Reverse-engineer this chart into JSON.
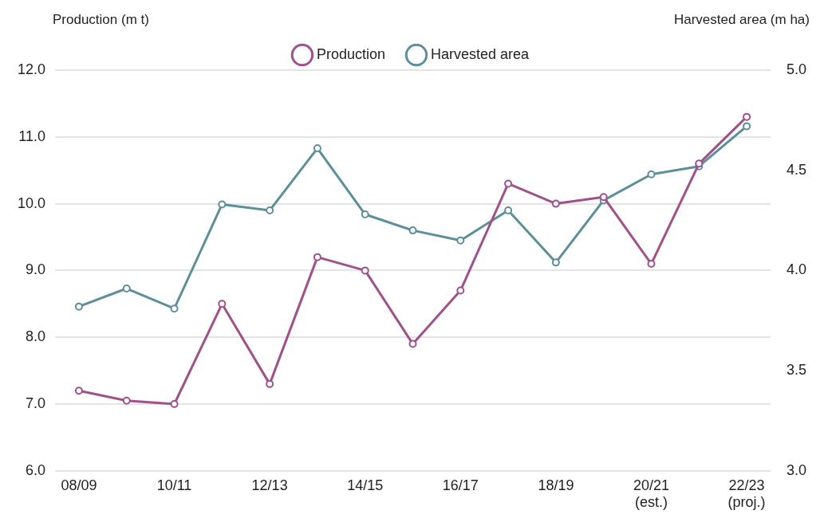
{
  "chart_data": {
    "type": "line",
    "ylabel": "Production (m t)",
    "y2label": "Harvested area (m ha)",
    "categories": [
      "08/09",
      null,
      "10/11",
      null,
      "12/13",
      null,
      "14/15",
      null,
      "16/17",
      null,
      "18/19",
      null,
      "20/21 (est.)",
      null,
      "22/23 (proj.)"
    ],
    "series": [
      {
        "name": "Production",
        "color": "#a0508a",
        "values": [
          7.2,
          7.05,
          7.0,
          8.5,
          7.3,
          9.2,
          9.0,
          7.9,
          8.7,
          10.3,
          10.0,
          10.1,
          9.1,
          10.6,
          11.3
        ]
      },
      {
        "name": "Harvested area",
        "color": "#5b8f9b",
        "axis": "y2",
        "values": [
          3.82,
          3.91,
          3.81,
          4.33,
          4.3,
          4.61,
          4.28,
          4.2,
          4.15,
          4.3,
          4.04,
          4.35,
          4.48,
          4.52,
          4.72
        ]
      }
    ],
    "ylim": [
      6,
      12
    ],
    "yticks": [
      {
        "value": 6,
        "label": "6.0"
      },
      {
        "value": 7,
        "label": "7.0"
      },
      {
        "value": 8,
        "label": "8.0"
      },
      {
        "value": 9,
        "label": "9.0"
      },
      {
        "value": 10,
        "label": "10.0"
      },
      {
        "value": 11,
        "label": "11.0"
      },
      {
        "value": 12,
        "label": "12.0"
      }
    ],
    "y2lim": [
      3,
      5
    ],
    "y2ticks": [
      {
        "value": 3,
        "label": "3.0"
      },
      {
        "value": 3.5,
        "label": "3.5"
      },
      {
        "value": 4,
        "label": "4.0"
      },
      {
        "value": 4.5,
        "label": "4.5"
      },
      {
        "value": 5,
        "label": "5.0"
      }
    ],
    "grid": "y",
    "legend": "top",
    "marker": "circle"
  }
}
